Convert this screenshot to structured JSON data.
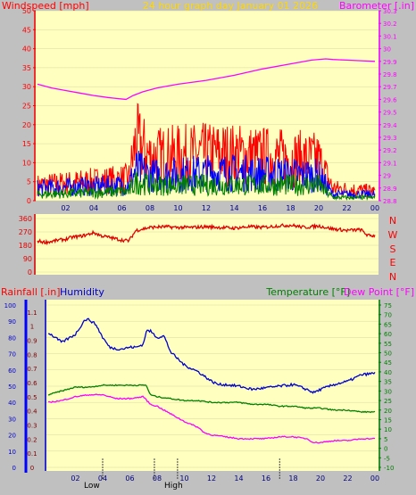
{
  "header": {
    "wind_title": "Windspeed [mph]",
    "date_title": "24 hour graph day  January 01 2026",
    "baro_title": "Barometer [.in]",
    "rain_title": "Rainfall [.in]",
    "humidity_title": "Humidity",
    "temp_title": "Temperature [°F]",
    "dew_title": "Dew Point [°F]",
    "compass": [
      "N",
      "W",
      "S",
      "E",
      "N"
    ],
    "low_label": "Low",
    "high_label": "High"
  },
  "colors": {
    "plot_bg": "#ffffc0",
    "frame_bg": "#c0c0c0",
    "wind_speed": "#ff0000",
    "wind_avg": "#0000ff",
    "wind_low": "#008000",
    "barometer": "#ff00ff",
    "direction": "#e00000",
    "humidity": "#0000cc",
    "temperature": "#008000",
    "dew_point": "#ff00ff",
    "rain_axis": "#0000ff",
    "title_yellow": "#ffd800"
  },
  "chart_data": [
    {
      "type": "line",
      "name": "wind-barometer",
      "x_ticks": [
        "02",
        "04",
        "06",
        "08",
        "10",
        "12",
        "14",
        "16",
        "18",
        "20",
        "22",
        "00"
      ],
      "left_axis": {
        "label": "Windspeed [mph]",
        "ylim": [
          0,
          50
        ],
        "ticks": [
          0,
          5,
          10,
          15,
          20,
          25,
          30,
          35,
          40,
          45,
          50
        ]
      },
      "right_axis": {
        "label": "Barometer [.in]",
        "ylim": [
          28.8,
          30.3
        ],
        "ticks": [
          "28.8",
          "28.9",
          "29",
          "29.1",
          "29.2",
          "29.3",
          "29.4",
          "29.5",
          "29.6",
          "29.7",
          "29.8",
          "29.9",
          "30",
          "30.1",
          "30.2",
          "30.3"
        ]
      },
      "series": [
        {
          "name": "Barometer [.in]",
          "axis": "right",
          "x": [
            0,
            1,
            2,
            3,
            4,
            5,
            5.8,
            6.3,
            6.8,
            7.5,
            8.5,
            10,
            12,
            14,
            16,
            18,
            19.5,
            20.5,
            21,
            22,
            23,
            24
          ],
          "y": [
            29.72,
            29.69,
            29.67,
            29.65,
            29.63,
            29.615,
            29.605,
            29.6,
            29.63,
            29.66,
            29.69,
            29.72,
            29.75,
            29.79,
            29.84,
            29.88,
            29.91,
            29.92,
            29.915,
            29.91,
            29.905,
            29.9
          ]
        },
        {
          "name": "Wind gust",
          "role": "gust",
          "envelope": [
            [
              0,
              5
            ],
            [
              6.5,
              7
            ],
            [
              7,
              19
            ],
            [
              8,
              14
            ],
            [
              13,
              15
            ],
            [
              20,
              13
            ],
            [
              21,
              4
            ],
            [
              24,
              3
            ]
          ]
        },
        {
          "name": "Wind average",
          "role": "avg",
          "envelope": [
            [
              0,
              4
            ],
            [
              6.5,
              5
            ],
            [
              7,
              10
            ],
            [
              8,
              8
            ],
            [
              13,
              9
            ],
            [
              20,
              8
            ],
            [
              21,
              2
            ],
            [
              24,
              2
            ]
          ]
        },
        {
          "name": "Wind low",
          "role": "low",
          "envelope": [
            [
              0,
              2
            ],
            [
              6.5,
              3
            ],
            [
              7,
              6
            ],
            [
              8,
              5
            ],
            [
              13,
              5
            ],
            [
              20,
              5
            ],
            [
              21,
              1
            ],
            [
              24,
              1
            ]
          ]
        }
      ]
    },
    {
      "type": "line",
      "name": "wind-direction",
      "ylim": [
        0,
        360
      ],
      "y_ticks": [
        0,
        90,
        180,
        270,
        360
      ],
      "x": [
        0,
        0.5,
        1,
        1.5,
        2,
        2.5,
        3,
        3.5,
        4,
        4.5,
        5,
        5.5,
        6,
        6.5,
        7,
        8,
        9,
        10,
        11,
        12,
        13,
        14,
        15,
        16,
        17,
        18,
        19,
        20,
        21,
        22,
        23,
        23.5,
        24
      ],
      "y": [
        210,
        200,
        205,
        215,
        220,
        235,
        240,
        250,
        265,
        245,
        235,
        225,
        215,
        210,
        280,
        300,
        305,
        300,
        300,
        305,
        300,
        295,
        305,
        300,
        310,
        315,
        300,
        310,
        290,
        280,
        285,
        245,
        245
      ]
    },
    {
      "type": "line",
      "name": "temp-humidity-rain",
      "x_ticks": [
        "02",
        "04",
        "06",
        "08",
        "10",
        "12",
        "14",
        "16",
        "18",
        "20",
        "22",
        "00"
      ],
      "rain_axis": {
        "label": "Rainfall [.in]",
        "ylim": [
          0,
          1.15
        ],
        "ticks": [
          "0",
          "0.1",
          "0.2",
          "0.3",
          "0.4",
          "0.5",
          "0.6",
          "0.7",
          "0.8",
          "0.9",
          "1",
          "1.1"
        ]
      },
      "humidity_axis": {
        "label": "Humidity",
        "ylim": [
          0,
          100
        ],
        "ticks": [
          0,
          10,
          20,
          30,
          40,
          50,
          60,
          70,
          80,
          90,
          100
        ]
      },
      "temp_axis": {
        "label": "Temperature [°F]",
        "ylim": [
          -10,
          75
        ],
        "ticks": [
          -10,
          -5,
          0,
          5,
          10,
          15,
          20,
          25,
          30,
          35,
          40,
          45,
          50,
          55,
          60,
          65,
          70,
          75
        ]
      },
      "markers": {
        "low_x": 4,
        "high_x": 9.5,
        "extra_x": [
          7.8,
          17
        ]
      },
      "series": [
        {
          "name": "Humidity",
          "axis": "humidity",
          "x": [
            0,
            0.5,
            1,
            2,
            2.7,
            3,
            3.5,
            4,
            4.5,
            5,
            5.5,
            6,
            6.5,
            7,
            7.2,
            7.5,
            8,
            8.5,
            9,
            10,
            11,
            12,
            12.5,
            13,
            14,
            15,
            16,
            17,
            18,
            19,
            19.5,
            20,
            21,
            22,
            23,
            24
          ],
          "y": [
            83,
            80,
            77,
            82,
            91,
            91,
            88,
            80,
            74,
            73,
            73,
            74,
            74,
            76,
            84,
            84,
            80,
            81,
            71,
            63,
            59,
            53,
            51,
            51,
            50,
            48,
            49,
            50,
            51,
            48,
            46,
            48,
            51,
            53,
            57,
            58
          ]
        },
        {
          "name": "Temperature [°F]",
          "axis": "temp",
          "x": [
            0,
            1,
            2,
            3,
            4,
            5,
            6,
            7,
            7.2,
            7.5,
            8,
            9,
            10,
            11,
            12,
            13,
            14,
            15,
            16,
            17,
            18,
            19,
            20,
            21,
            22,
            23,
            24
          ],
          "y": [
            28,
            30,
            32,
            32,
            33,
            33,
            33,
            33,
            33,
            28,
            27,
            26,
            25,
            25,
            24,
            24,
            24,
            23,
            23,
            22,
            22,
            21,
            21,
            20,
            20,
            19,
            19
          ]
        },
        {
          "name": "Dew Point [°F]",
          "axis": "temp",
          "x": [
            0,
            1,
            2,
            3,
            4,
            5,
            6,
            7,
            7.5,
            8,
            9,
            10,
            11,
            11.5,
            12,
            13,
            14,
            15,
            16,
            17,
            18,
            19,
            19.5,
            20,
            21,
            22,
            23,
            24
          ],
          "y": [
            24,
            25,
            27,
            28,
            28,
            26,
            26,
            27,
            23,
            22,
            18,
            14,
            11,
            8,
            7,
            6,
            5,
            5,
            5,
            6,
            6,
            5,
            3,
            3,
            4,
            4,
            5,
            5
          ]
        }
      ]
    }
  ]
}
